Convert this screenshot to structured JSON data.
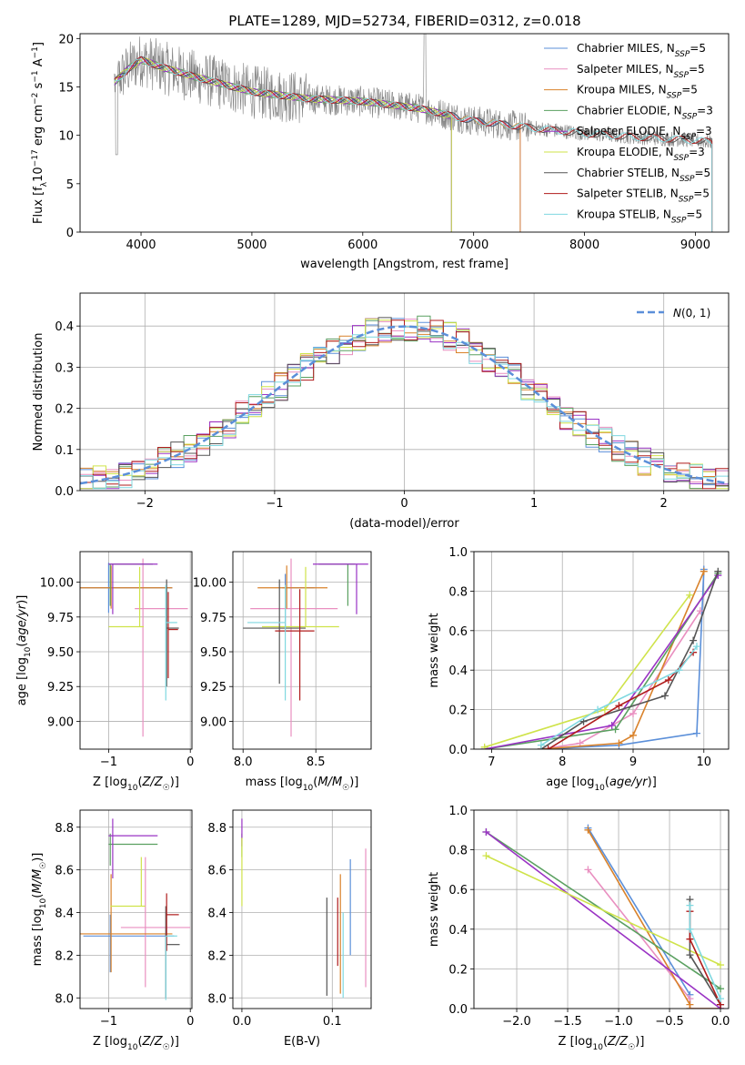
{
  "title": "PLATE=1289, MJD=52734, FIBERID=0312, z=0.018",
  "colors": {
    "Chabrier MILES": "#5b8fd9",
    "Salpeter MILES": "#e98fc0",
    "Kroupa MILES": "#d9822b",
    "Chabrier ELODIE": "#5aa060",
    "Salpeter ELODIE": "#9a33c4",
    "Kroupa ELODIE": "#cfe34a",
    "Chabrier STELIB": "#555555",
    "Salpeter STELIB": "#b01c1c",
    "Kroupa STELIB": "#7fd8e0",
    "data": "#808080",
    "gauss": "#5b8fd9"
  },
  "models": [
    "Chabrier MILES",
    "Salpeter MILES",
    "Kroupa MILES",
    "Chabrier ELODIE",
    "Salpeter ELODIE",
    "Kroupa ELODIE",
    "Chabrier STELIB",
    "Salpeter STELIB",
    "Kroupa STELIB"
  ],
  "legend_entries": [
    {
      "name": "Chabrier MILES",
      "text": "Chabrier MILES, N",
      "n": "=5"
    },
    {
      "name": "Salpeter MILES",
      "text": "Salpeter MILES, N",
      "n": "=5"
    },
    {
      "name": "Kroupa MILES",
      "text": "Kroupa MILES, N",
      "n": "=5"
    },
    {
      "name": "Chabrier ELODIE",
      "text": "Chabrier ELODIE, N",
      "n": "=3"
    },
    {
      "name": "Salpeter ELODIE",
      "text": "Salpeter ELODIE, N",
      "n": "=3"
    },
    {
      "name": "Kroupa ELODIE",
      "text": "Kroupa ELODIE, N",
      "n": "=3"
    },
    {
      "name": "Chabrier STELIB",
      "text": "Chabrier STELIB, N",
      "n": "=5"
    },
    {
      "name": "Salpeter STELIB",
      "text": "Salpeter STELIB, N",
      "n": "=5"
    },
    {
      "name": "Kroupa STELIB",
      "text": "Kroupa STELIB, N",
      "n": "=5"
    }
  ],
  "legend_subscript": "SSP",
  "chart_data": [
    {
      "id": "spectrum",
      "type": "line",
      "xlabel": "wavelength [Angstrom, rest frame]",
      "ylabel": "Flux [fλ10⁻¹⁷ erg cm⁻² s⁻¹ A⁻¹]",
      "xlim": [
        3450,
        9300
      ],
      "ylim": [
        0,
        20.5
      ],
      "xticks": [
        4000,
        5000,
        6000,
        7000,
        8000,
        9000
      ],
      "yticks": [
        0,
        5,
        10,
        15,
        20
      ],
      "continuum": [
        [
          3760,
          15.5
        ],
        [
          3900,
          17.0
        ],
        [
          4000,
          17.8
        ],
        [
          4200,
          17.0
        ],
        [
          4500,
          16.0
        ],
        [
          5000,
          14.5
        ],
        [
          5500,
          13.8
        ],
        [
          6000,
          13.5
        ],
        [
          6500,
          12.8
        ],
        [
          7000,
          11.5
        ],
        [
          7500,
          10.8
        ],
        [
          8000,
          10.2
        ],
        [
          8500,
          9.8
        ],
        [
          9000,
          9.5
        ],
        [
          9150,
          9.3
        ]
      ],
      "model_ranges": {
        "Chabrier MILES": [
          3760,
          7420
        ],
        "Salpeter MILES": [
          3760,
          7420
        ],
        "Kroupa MILES": [
          3900,
          7420
        ],
        "Chabrier ELODIE": [
          3760,
          6800
        ],
        "Salpeter ELODIE": [
          3760,
          6800
        ],
        "Kroupa ELODIE": [
          3760,
          6800
        ],
        "Chabrier STELIB": [
          3760,
          9150
        ],
        "Salpeter STELIB": [
          3760,
          9150
        ],
        "Kroupa STELIB": [
          3760,
          9150
        ]
      },
      "grid": false,
      "legend": "top-right"
    },
    {
      "id": "residuals",
      "type": "histogram",
      "xlabel": "(data-model)/error",
      "ylabel": "Normed distribution",
      "xlim": [
        -2.5,
        2.5
      ],
      "ylim": [
        0,
        0.48
      ],
      "xticks": [
        -2,
        -1,
        0,
        1,
        2
      ],
      "yticks": [
        0.0,
        0.1,
        0.2,
        0.3,
        0.4
      ],
      "bin_width": 0.1,
      "gauss_label": "N(0, 1)",
      "legend": "top-right",
      "grid": true
    },
    {
      "id": "age_vs_Z",
      "type": "errorbar",
      "xlabel": "Z [log10(Z/Z☉)]",
      "ylabel": "age  [log10(age/yr)]",
      "xlim": [
        -1.35,
        0.02
      ],
      "ylim": [
        8.8,
        10.22
      ],
      "xticks": [
        -1,
        0
      ],
      "yticks": [
        9.0,
        9.25,
        9.5,
        9.75,
        10.0
      ],
      "points": [
        {
          "m": "Chabrier MILES",
          "x": -1.0,
          "y": 9.96,
          "xerr": [
            0.35,
            0.78
          ],
          "yerr": [
            0.18,
            0.18
          ]
        },
        {
          "m": "Salpeter MILES",
          "x": -0.58,
          "y": 9.81,
          "xerr": [
            0.1,
            0.55
          ],
          "yerr": [
            0.92,
            0.36
          ]
        },
        {
          "m": "Kroupa MILES",
          "x": -0.97,
          "y": 9.96,
          "xerr": [
            0.38,
            0.75
          ],
          "yerr": [
            0.15,
            0.16
          ]
        },
        {
          "m": "Chabrier ELODIE",
          "x": -0.98,
          "y": 10.13,
          "xerr": [
            0.02,
            0.52
          ],
          "yerr": [
            0.3,
            0.0
          ]
        },
        {
          "m": "Salpeter ELODIE",
          "x": -0.95,
          "y": 10.13,
          "xerr": [
            0.05,
            0.55
          ],
          "yerr": [
            0.36,
            0.0
          ]
        },
        {
          "m": "Kroupa ELODIE",
          "x": -0.62,
          "y": 9.68,
          "xerr": [
            0.38,
            0.05
          ],
          "yerr": [
            0.0,
            0.43
          ]
        },
        {
          "m": "Chabrier STELIB",
          "x": -0.29,
          "y": 9.67,
          "xerr": [
            0.0,
            0.15
          ],
          "yerr": [
            0.42,
            0.35
          ]
        },
        {
          "m": "Salpeter STELIB",
          "x": -0.27,
          "y": 9.66,
          "xerr": [
            0.0,
            0.12
          ],
          "yerr": [
            0.35,
            0.27
          ]
        },
        {
          "m": "Kroupa STELIB",
          "x": -0.3,
          "y": 9.71,
          "xerr": [
            0.0,
            0.14
          ],
          "yerr": [
            0.56,
            0.27
          ]
        }
      ],
      "grid": true
    },
    {
      "id": "age_vs_mass",
      "type": "errorbar",
      "xlabel": "mass [log10(M/M☉)]",
      "ylabel": "",
      "xlim": [
        7.93,
        8.88
      ],
      "ylim": [
        8.8,
        10.22
      ],
      "xticks": [
        8.0,
        8.5
      ],
      "yticks": [
        9.0,
        9.25,
        9.5,
        9.75,
        10.0
      ],
      "points": [
        {
          "m": "Chabrier MILES",
          "x": 8.29,
          "y": 9.96,
          "xerr": [
            0.02,
            0.2
          ],
          "yerr": [
            0.3,
            0.1
          ]
        },
        {
          "m": "Salpeter MILES",
          "x": 8.33,
          "y": 9.81,
          "xerr": [
            0.28,
            0.32
          ],
          "yerr": [
            0.92,
            0.36
          ]
        },
        {
          "m": "Kroupa MILES",
          "x": 8.3,
          "y": 9.96,
          "xerr": [
            0.2,
            0.28
          ],
          "yerr": [
            0.15,
            0.16
          ]
        },
        {
          "m": "Chabrier ELODIE",
          "x": 8.72,
          "y": 10.13,
          "xerr": [
            0.2,
            0.05
          ],
          "yerr": [
            0.3,
            0.0
          ]
        },
        {
          "m": "Salpeter ELODIE",
          "x": 8.78,
          "y": 10.13,
          "xerr": [
            0.3,
            0.08
          ],
          "yerr": [
            0.36,
            0.0
          ]
        },
        {
          "m": "Kroupa ELODIE",
          "x": 8.43,
          "y": 9.68,
          "xerr": [
            0.3,
            0.23
          ],
          "yerr": [
            0.0,
            0.43
          ]
        },
        {
          "m": "Chabrier STELIB",
          "x": 8.25,
          "y": 9.67,
          "xerr": [
            0.25,
            0.18
          ],
          "yerr": [
            0.4,
            0.35
          ]
        },
        {
          "m": "Salpeter STELIB",
          "x": 8.39,
          "y": 9.65,
          "xerr": [
            0.17,
            0.1
          ],
          "yerr": [
            0.5,
            0.3
          ]
        },
        {
          "m": "Kroupa STELIB",
          "x": 8.29,
          "y": 9.71,
          "xerr": [
            0.26,
            0.0
          ],
          "yerr": [
            0.56,
            0.27
          ]
        }
      ],
      "grid": true
    },
    {
      "id": "mass_weight_vs_age",
      "type": "line",
      "xlabel": "age  [log10(age/yr)]",
      "ylabel": "mass weight",
      "xlim": [
        6.75,
        10.35
      ],
      "ylim": [
        0,
        1.0
      ],
      "xticks": [
        7,
        8,
        9,
        10
      ],
      "yticks": [
        0.0,
        0.2,
        0.4,
        0.6,
        0.8,
        1.0
      ],
      "series": [
        {
          "m": "Chabrier MILES",
          "x": [
            7.7,
            8.8,
            9.9,
            10.0
          ],
          "y": [
            0.0,
            0.02,
            0.08,
            0.91
          ]
        },
        {
          "m": "Salpeter MILES",
          "x": [
            7.7,
            8.25,
            9.0,
            9.95
          ],
          "y": [
            0.0,
            0.03,
            0.18,
            0.7
          ]
        },
        {
          "m": "Kroupa MILES",
          "x": [
            7.7,
            8.8,
            9.0,
            10.0
          ],
          "y": [
            0.0,
            0.03,
            0.07,
            0.9
          ]
        },
        {
          "m": "Chabrier ELODIE",
          "x": [
            6.9,
            8.75,
            10.2
          ],
          "y": [
            0.0,
            0.1,
            0.89
          ]
        },
        {
          "m": "Salpeter ELODIE",
          "x": [
            6.9,
            8.7,
            10.2
          ],
          "y": [
            0.0,
            0.12,
            0.88
          ]
        },
        {
          "m": "Kroupa ELODIE",
          "x": [
            6.9,
            8.6,
            9.8
          ],
          "y": [
            0.01,
            0.2,
            0.78
          ]
        },
        {
          "m": "Chabrier STELIB",
          "x": [
            7.7,
            8.3,
            9.45,
            9.85,
            10.2
          ],
          "y": [
            0.0,
            0.14,
            0.27,
            0.55,
            0.9
          ]
        },
        {
          "m": "Salpeter STELIB",
          "x": [
            7.8,
            8.8,
            9.5,
            9.85
          ],
          "y": [
            0.0,
            0.22,
            0.35,
            0.49
          ]
        },
        {
          "m": "Kroupa STELIB",
          "x": [
            7.7,
            8.5,
            9.65,
            9.9
          ],
          "y": [
            0.02,
            0.2,
            0.4,
            0.52
          ]
        }
      ],
      "grid": true
    },
    {
      "id": "mass_vs_Z",
      "type": "errorbar",
      "xlabel": "Z [log10(Z/Z☉)]",
      "ylabel": "mass [log10(M/M☉)]",
      "xlim": [
        -1.35,
        0.02
      ],
      "ylim": [
        7.95,
        8.88
      ],
      "xticks": [
        -1,
        0
      ],
      "yticks": [
        8.0,
        8.2,
        8.4,
        8.6,
        8.8
      ],
      "points": [
        {
          "m": "Chabrier MILES",
          "x": -0.98,
          "y": 8.29,
          "xerr": [
            0.33,
            0.78
          ],
          "yerr": [
            0.17,
            0.1
          ]
        },
        {
          "m": "Salpeter MILES",
          "x": -0.55,
          "y": 8.33,
          "xerr": [
            0.3,
            0.55
          ],
          "yerr": [
            0.28,
            0.33
          ]
        },
        {
          "m": "Kroupa MILES",
          "x": -0.97,
          "y": 8.3,
          "xerr": [
            0.38,
            0.75
          ],
          "yerr": [
            0.18,
            0.28
          ]
        },
        {
          "m": "Chabrier ELODIE",
          "x": -0.98,
          "y": 8.72,
          "xerr": [
            0.02,
            0.58
          ],
          "yerr": [
            0.1,
            0.05
          ]
        },
        {
          "m": "Salpeter ELODIE",
          "x": -0.95,
          "y": 8.76,
          "xerr": [
            0.05,
            0.55
          ],
          "yerr": [
            0.2,
            0.08
          ]
        },
        {
          "m": "Kroupa ELODIE",
          "x": -0.6,
          "y": 8.43,
          "xerr": [
            0.38,
            0.05
          ],
          "yerr": [
            0.0,
            0.23
          ]
        },
        {
          "m": "Chabrier STELIB",
          "x": -0.3,
          "y": 8.25,
          "xerr": [
            0.0,
            0.17
          ],
          "yerr": [
            0.25,
            0.18
          ]
        },
        {
          "m": "Salpeter STELIB",
          "x": -0.29,
          "y": 8.39,
          "xerr": [
            0.0,
            0.15
          ],
          "yerr": [
            0.17,
            0.1
          ]
        },
        {
          "m": "Kroupa STELIB",
          "x": -0.3,
          "y": 8.29,
          "xerr": [
            0.0,
            0.14
          ],
          "yerr": [
            0.3,
            0.0
          ]
        }
      ],
      "grid": true
    },
    {
      "id": "mass_vs_ebv",
      "type": "errorbar",
      "xlabel": "E(B-V)",
      "ylabel": "",
      "xlim": [
        -0.01,
        0.143
      ],
      "ylim": [
        7.95,
        8.88
      ],
      "xticks": [
        0.0,
        0.1
      ],
      "yticks": [
        8.0,
        8.2,
        8.4,
        8.6,
        8.8
      ],
      "points": [
        {
          "m": "Chabrier MILES",
          "x": 0.12,
          "y": 8.4,
          "yerr": [
            0.2,
            0.25
          ]
        },
        {
          "m": "Salpeter MILES",
          "x": 0.137,
          "y": 8.35,
          "yerr": [
            0.3,
            0.35
          ]
        },
        {
          "m": "Kroupa MILES",
          "x": 0.109,
          "y": 8.3,
          "yerr": [
            0.28,
            0.28
          ]
        },
        {
          "m": "Chabrier ELODIE",
          "x": 0.0,
          "y": 8.72,
          "yerr": [
            0.06,
            0.05
          ]
        },
        {
          "m": "Salpeter ELODIE",
          "x": 0.0,
          "y": 8.76,
          "yerr": [
            0.05,
            0.08
          ]
        },
        {
          "m": "Kroupa ELODIE",
          "x": 0.0,
          "y": 8.6,
          "yerr": [
            0.17,
            0.15
          ]
        },
        {
          "m": "Chabrier STELIB",
          "x": 0.094,
          "y": 8.24,
          "yerr": [
            0.23,
            0.23
          ]
        },
        {
          "m": "Salpeter STELIB",
          "x": 0.106,
          "y": 8.32,
          "yerr": [
            0.17,
            0.15
          ]
        },
        {
          "m": "Kroupa STELIB",
          "x": 0.112,
          "y": 8.2,
          "yerr": [
            0.2,
            0.2
          ]
        }
      ],
      "grid": true
    },
    {
      "id": "mass_weight_vs_Z",
      "type": "line",
      "xlabel": "Z [log10(Z/Z☉)]",
      "ylabel": "mass weight",
      "xlim": [
        -2.42,
        0.08
      ],
      "ylim": [
        0,
        1.0
      ],
      "xticks": [
        -2.0,
        -1.5,
        -1.0,
        -0.5,
        0.0
      ],
      "yticks": [
        0.0,
        0.2,
        0.4,
        0.6,
        0.8,
        1.0
      ],
      "series": [
        {
          "m": "Chabrier MILES",
          "x": [
            -1.3,
            -0.3,
            -0.3,
            0.0
          ],
          "y": [
            0.91,
            0.07,
            0.0,
            0.0
          ]
        },
        {
          "m": "Salpeter MILES",
          "x": [
            -1.3,
            -0.3,
            -0.3,
            0.0
          ],
          "y": [
            0.7,
            0.05,
            0.0,
            0.0
          ]
        },
        {
          "m": "Kroupa MILES",
          "x": [
            -1.3,
            -0.3,
            -0.3,
            0.0
          ],
          "y": [
            0.9,
            0.02,
            0.0,
            0.0
          ]
        },
        {
          "m": "Chabrier ELODIE",
          "x": [
            -2.3,
            0.0
          ],
          "y": [
            0.89,
            0.1
          ]
        },
        {
          "m": "Salpeter ELODIE",
          "x": [
            -2.3,
            0.0
          ],
          "y": [
            0.89,
            0.0
          ]
        },
        {
          "m": "Kroupa ELODIE",
          "x": [
            -2.3,
            0.0
          ],
          "y": [
            0.77,
            0.22
          ]
        },
        {
          "m": "Chabrier STELIB",
          "x": [
            -0.3,
            -0.3,
            0.0
          ],
          "y": [
            0.55,
            0.27,
            0.02
          ]
        },
        {
          "m": "Salpeter STELIB",
          "x": [
            -0.3,
            -0.3,
            0.0
          ],
          "y": [
            0.49,
            0.35,
            0.02
          ]
        },
        {
          "m": "Kroupa STELIB",
          "x": [
            -0.3,
            -0.3,
            0.0
          ],
          "y": [
            0.52,
            0.4,
            0.05
          ]
        }
      ],
      "grid": true
    }
  ]
}
